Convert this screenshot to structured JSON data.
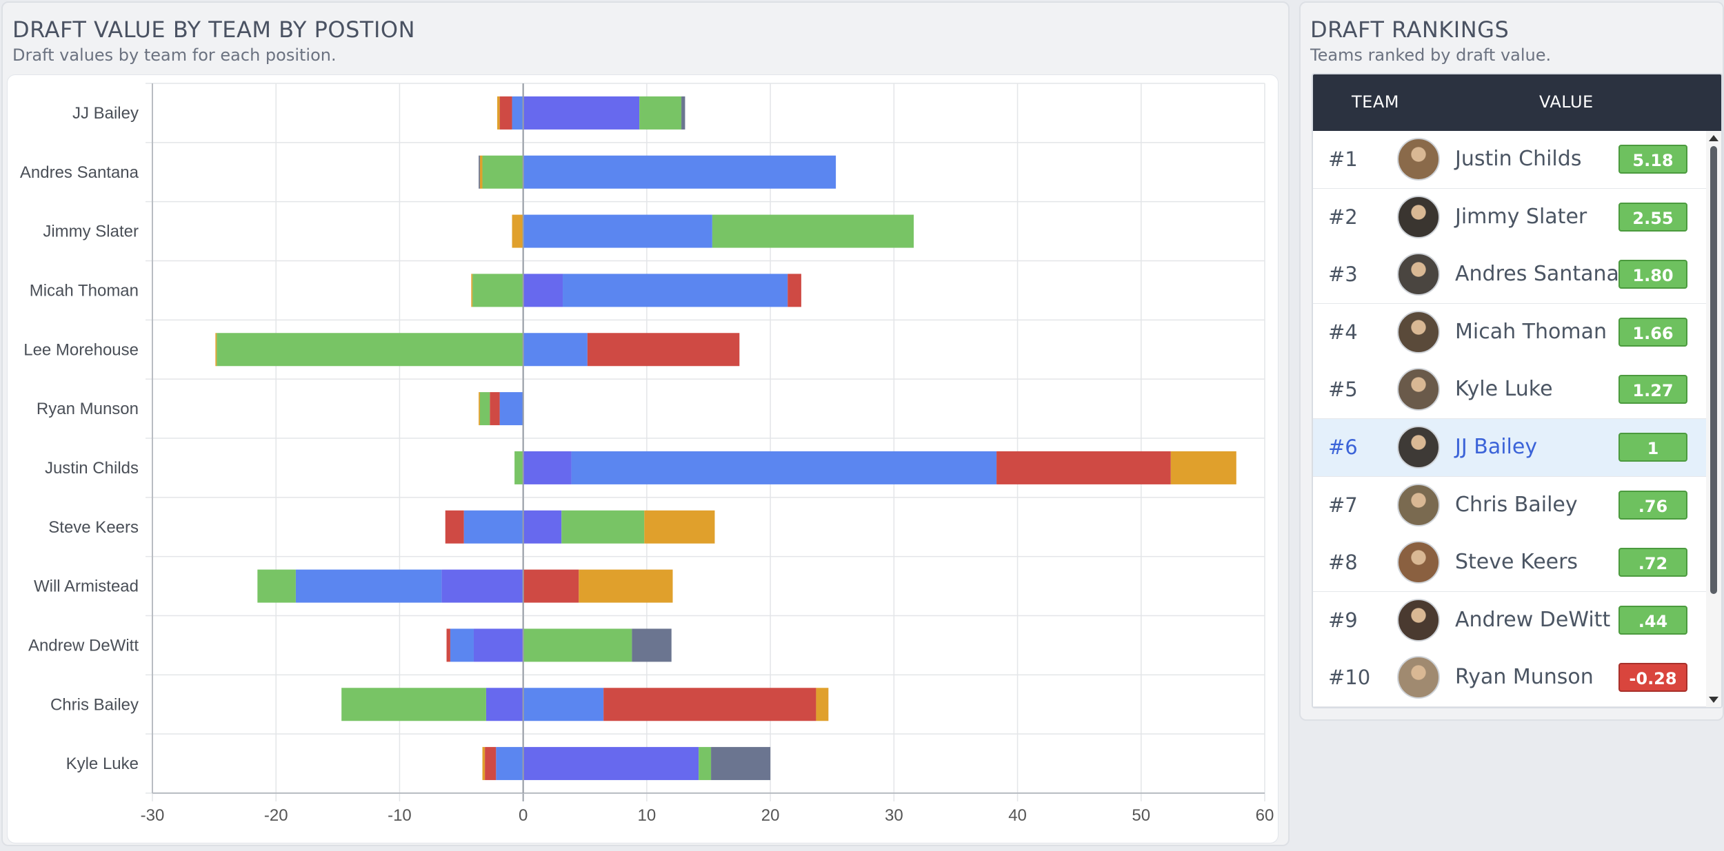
{
  "left_panel": {
    "title": "DRAFT VALUE BY TEAM BY POSTION",
    "subtitle": "Draft values by team for each position."
  },
  "right_panel": {
    "title": "DRAFT RANKINGS",
    "subtitle": "Teams ranked by draft value.",
    "columns": {
      "team": "TEAM",
      "value": "VALUE"
    },
    "rows": [
      {
        "rank": "#1",
        "name": "Justin Childs",
        "value": "5.18",
        "status": "positive",
        "highlighted": false
      },
      {
        "rank": "#2",
        "name": "Jimmy Slater",
        "value": "2.55",
        "status": "positive",
        "highlighted": false
      },
      {
        "rank": "#3",
        "name": "Andres Santana",
        "value": "1.80",
        "status": "positive",
        "highlighted": false
      },
      {
        "rank": "#4",
        "name": "Micah Thoman",
        "value": "1.66",
        "status": "positive",
        "highlighted": false
      },
      {
        "rank": "#5",
        "name": "Kyle Luke",
        "value": "1.27",
        "status": "positive",
        "highlighted": false
      },
      {
        "rank": "#6",
        "name": "JJ Bailey",
        "value": "1",
        "status": "positive",
        "highlighted": true
      },
      {
        "rank": "#7",
        "name": "Chris Bailey",
        "value": ".76",
        "status": "positive",
        "highlighted": false
      },
      {
        "rank": "#8",
        "name": "Steve Keers",
        "value": ".72",
        "status": "positive",
        "highlighted": false
      },
      {
        "rank": "#9",
        "name": "Andrew DeWitt",
        "value": ".44",
        "status": "positive",
        "highlighted": false
      },
      {
        "rank": "#10",
        "name": "Ryan Munson",
        "value": "-0.28",
        "status": "negative",
        "highlighted": false
      }
    ]
  },
  "colors": {
    "blue": "#5b86f0",
    "indigo": "#6769ee",
    "green": "#78c465",
    "red": "#cf4a44",
    "orange": "#e0a02c",
    "slate": "#6b7590",
    "badge_positive": "#6ec15f",
    "badge_negative": "#d9453d"
  },
  "chart_data": {
    "type": "bar",
    "orientation": "horizontal",
    "stacked": true,
    "title": "DRAFT VALUE BY TEAM BY POSTION",
    "xlim": [
      -30,
      60
    ],
    "xticks": [
      -30,
      -20,
      -10,
      0,
      10,
      20,
      30,
      40,
      50,
      60
    ],
    "categories": [
      "JJ Bailey",
      "Andres Santana",
      "Jimmy Slater",
      "Micah Thoman",
      "Lee Morehouse",
      "Ryan Munson",
      "Justin Childs",
      "Steve Keers",
      "Will Armistead",
      "Andrew DeWitt",
      "Chris Bailey",
      "Kyle Luke"
    ],
    "bars": [
      {
        "team": "JJ Bailey",
        "negative": [
          {
            "c": "blue",
            "v": -0.9
          },
          {
            "c": "red",
            "v": -1.0
          },
          {
            "c": "orange",
            "v": -0.2
          }
        ],
        "positive": [
          {
            "c": "indigo",
            "v": 9.4
          },
          {
            "c": "green",
            "v": 3.4
          },
          {
            "c": "slate",
            "v": 0.3
          }
        ]
      },
      {
        "team": "Andres Santana",
        "negative": [
          {
            "c": "green",
            "v": -3.3
          },
          {
            "c": "orange",
            "v": -0.2
          },
          {
            "c": "slate",
            "v": -0.1
          }
        ],
        "positive": [
          {
            "c": "blue",
            "v": 25.3
          }
        ]
      },
      {
        "team": "Jimmy Slater",
        "negative": [
          {
            "c": "orange",
            "v": -0.9
          }
        ],
        "positive": [
          {
            "c": "blue",
            "v": 15.3
          },
          {
            "c": "green",
            "v": 16.3
          }
        ]
      },
      {
        "team": "Micah Thoman",
        "negative": [
          {
            "c": "green",
            "v": -4.1
          },
          {
            "c": "orange",
            "v": -0.1
          }
        ],
        "positive": [
          {
            "c": "indigo",
            "v": 3.2
          },
          {
            "c": "blue",
            "v": 18.2
          },
          {
            "c": "red",
            "v": 1.1
          }
        ]
      },
      {
        "team": "Lee Morehouse",
        "negative": [
          {
            "c": "green",
            "v": -24.8
          },
          {
            "c": "orange",
            "v": -0.1
          }
        ],
        "positive": [
          {
            "c": "blue",
            "v": 5.2
          },
          {
            "c": "red",
            "v": 12.3
          }
        ]
      },
      {
        "team": "Ryan Munson",
        "negative": [
          {
            "c": "blue",
            "v": -1.9
          },
          {
            "c": "red",
            "v": -0.8
          },
          {
            "c": "green",
            "v": -0.8
          },
          {
            "c": "orange",
            "v": -0.1
          }
        ],
        "positive": []
      },
      {
        "team": "Justin Childs",
        "negative": [
          {
            "c": "green",
            "v": -0.7
          }
        ],
        "positive": [
          {
            "c": "indigo",
            "v": 3.9
          },
          {
            "c": "blue",
            "v": 34.4
          },
          {
            "c": "red",
            "v": 14.1
          },
          {
            "c": "orange",
            "v": 5.3
          }
        ]
      },
      {
        "team": "Steve Keers",
        "negative": [
          {
            "c": "blue",
            "v": -4.8
          },
          {
            "c": "red",
            "v": -1.5
          }
        ],
        "positive": [
          {
            "c": "indigo",
            "v": 3.1
          },
          {
            "c": "green",
            "v": 6.7
          },
          {
            "c": "orange",
            "v": 5.7
          }
        ]
      },
      {
        "team": "Will Armistead",
        "negative": [
          {
            "c": "indigo",
            "v": -6.6
          },
          {
            "c": "blue",
            "v": -11.8
          },
          {
            "c": "green",
            "v": -3.1
          }
        ],
        "positive": [
          {
            "c": "red",
            "v": 4.5
          },
          {
            "c": "orange",
            "v": 7.6
          }
        ]
      },
      {
        "team": "Andrew DeWitt",
        "negative": [
          {
            "c": "indigo",
            "v": -4.0
          },
          {
            "c": "blue",
            "v": -1.9
          },
          {
            "c": "red",
            "v": -0.3
          }
        ],
        "positive": [
          {
            "c": "green",
            "v": 8.8
          },
          {
            "c": "slate",
            "v": 3.2
          }
        ]
      },
      {
        "team": "Chris Bailey",
        "negative": [
          {
            "c": "indigo",
            "v": -3.0
          },
          {
            "c": "green",
            "v": -11.7
          }
        ],
        "positive": [
          {
            "c": "blue",
            "v": 6.5
          },
          {
            "c": "red",
            "v": 17.2
          },
          {
            "c": "orange",
            "v": 1.0
          }
        ]
      },
      {
        "team": "Kyle Luke",
        "negative": [
          {
            "c": "blue",
            "v": -2.2
          },
          {
            "c": "red",
            "v": -0.9
          },
          {
            "c": "orange",
            "v": -0.2
          }
        ],
        "positive": [
          {
            "c": "indigo",
            "v": 14.2
          },
          {
            "c": "green",
            "v": 1.0
          },
          {
            "c": "slate",
            "v": 4.8
          }
        ]
      }
    ]
  }
}
